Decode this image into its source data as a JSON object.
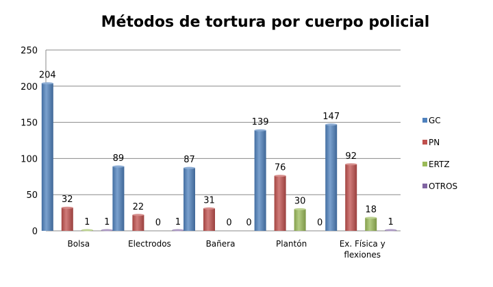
{
  "chart_data": {
    "type": "bar",
    "title": "Métodos de tortura por cuerpo policial",
    "xlabel": "",
    "ylabel": "",
    "ylim": [
      0,
      250
    ],
    "yticks": [
      0,
      50,
      100,
      150,
      200,
      250
    ],
    "ytick_labels": [
      "0",
      "50",
      "100",
      "150",
      "200",
      "250"
    ],
    "grid": true,
    "legend_position": "right",
    "categories": [
      [
        "Bolsa"
      ],
      [
        "Electrodos"
      ],
      [
        "Bañera"
      ],
      [
        "Plantón"
      ],
      [
        "Ex. Física y",
        "flexiones"
      ]
    ],
    "series": [
      {
        "name": "GC",
        "color": "#4F81BD",
        "values": [
          204,
          89,
          87,
          139,
          147
        ],
        "labels": [
          "204",
          "89",
          "87",
          "139",
          "147"
        ]
      },
      {
        "name": "PN",
        "color": "#C0504D",
        "values": [
          32,
          22,
          31,
          76,
          92
        ],
        "labels": [
          "32",
          "22",
          "31",
          "76",
          "92"
        ]
      },
      {
        "name": "ERTZ",
        "color": "#9BBB59",
        "values": [
          1,
          0,
          0,
          30,
          18
        ],
        "labels": [
          "1",
          "0",
          "0",
          "30",
          "18"
        ]
      },
      {
        "name": "OTROS",
        "color": "#8064A2",
        "values": [
          1,
          1,
          0,
          0,
          1
        ],
        "labels": [
          "1",
          "1",
          "0",
          "0",
          "1"
        ]
      }
    ]
  }
}
